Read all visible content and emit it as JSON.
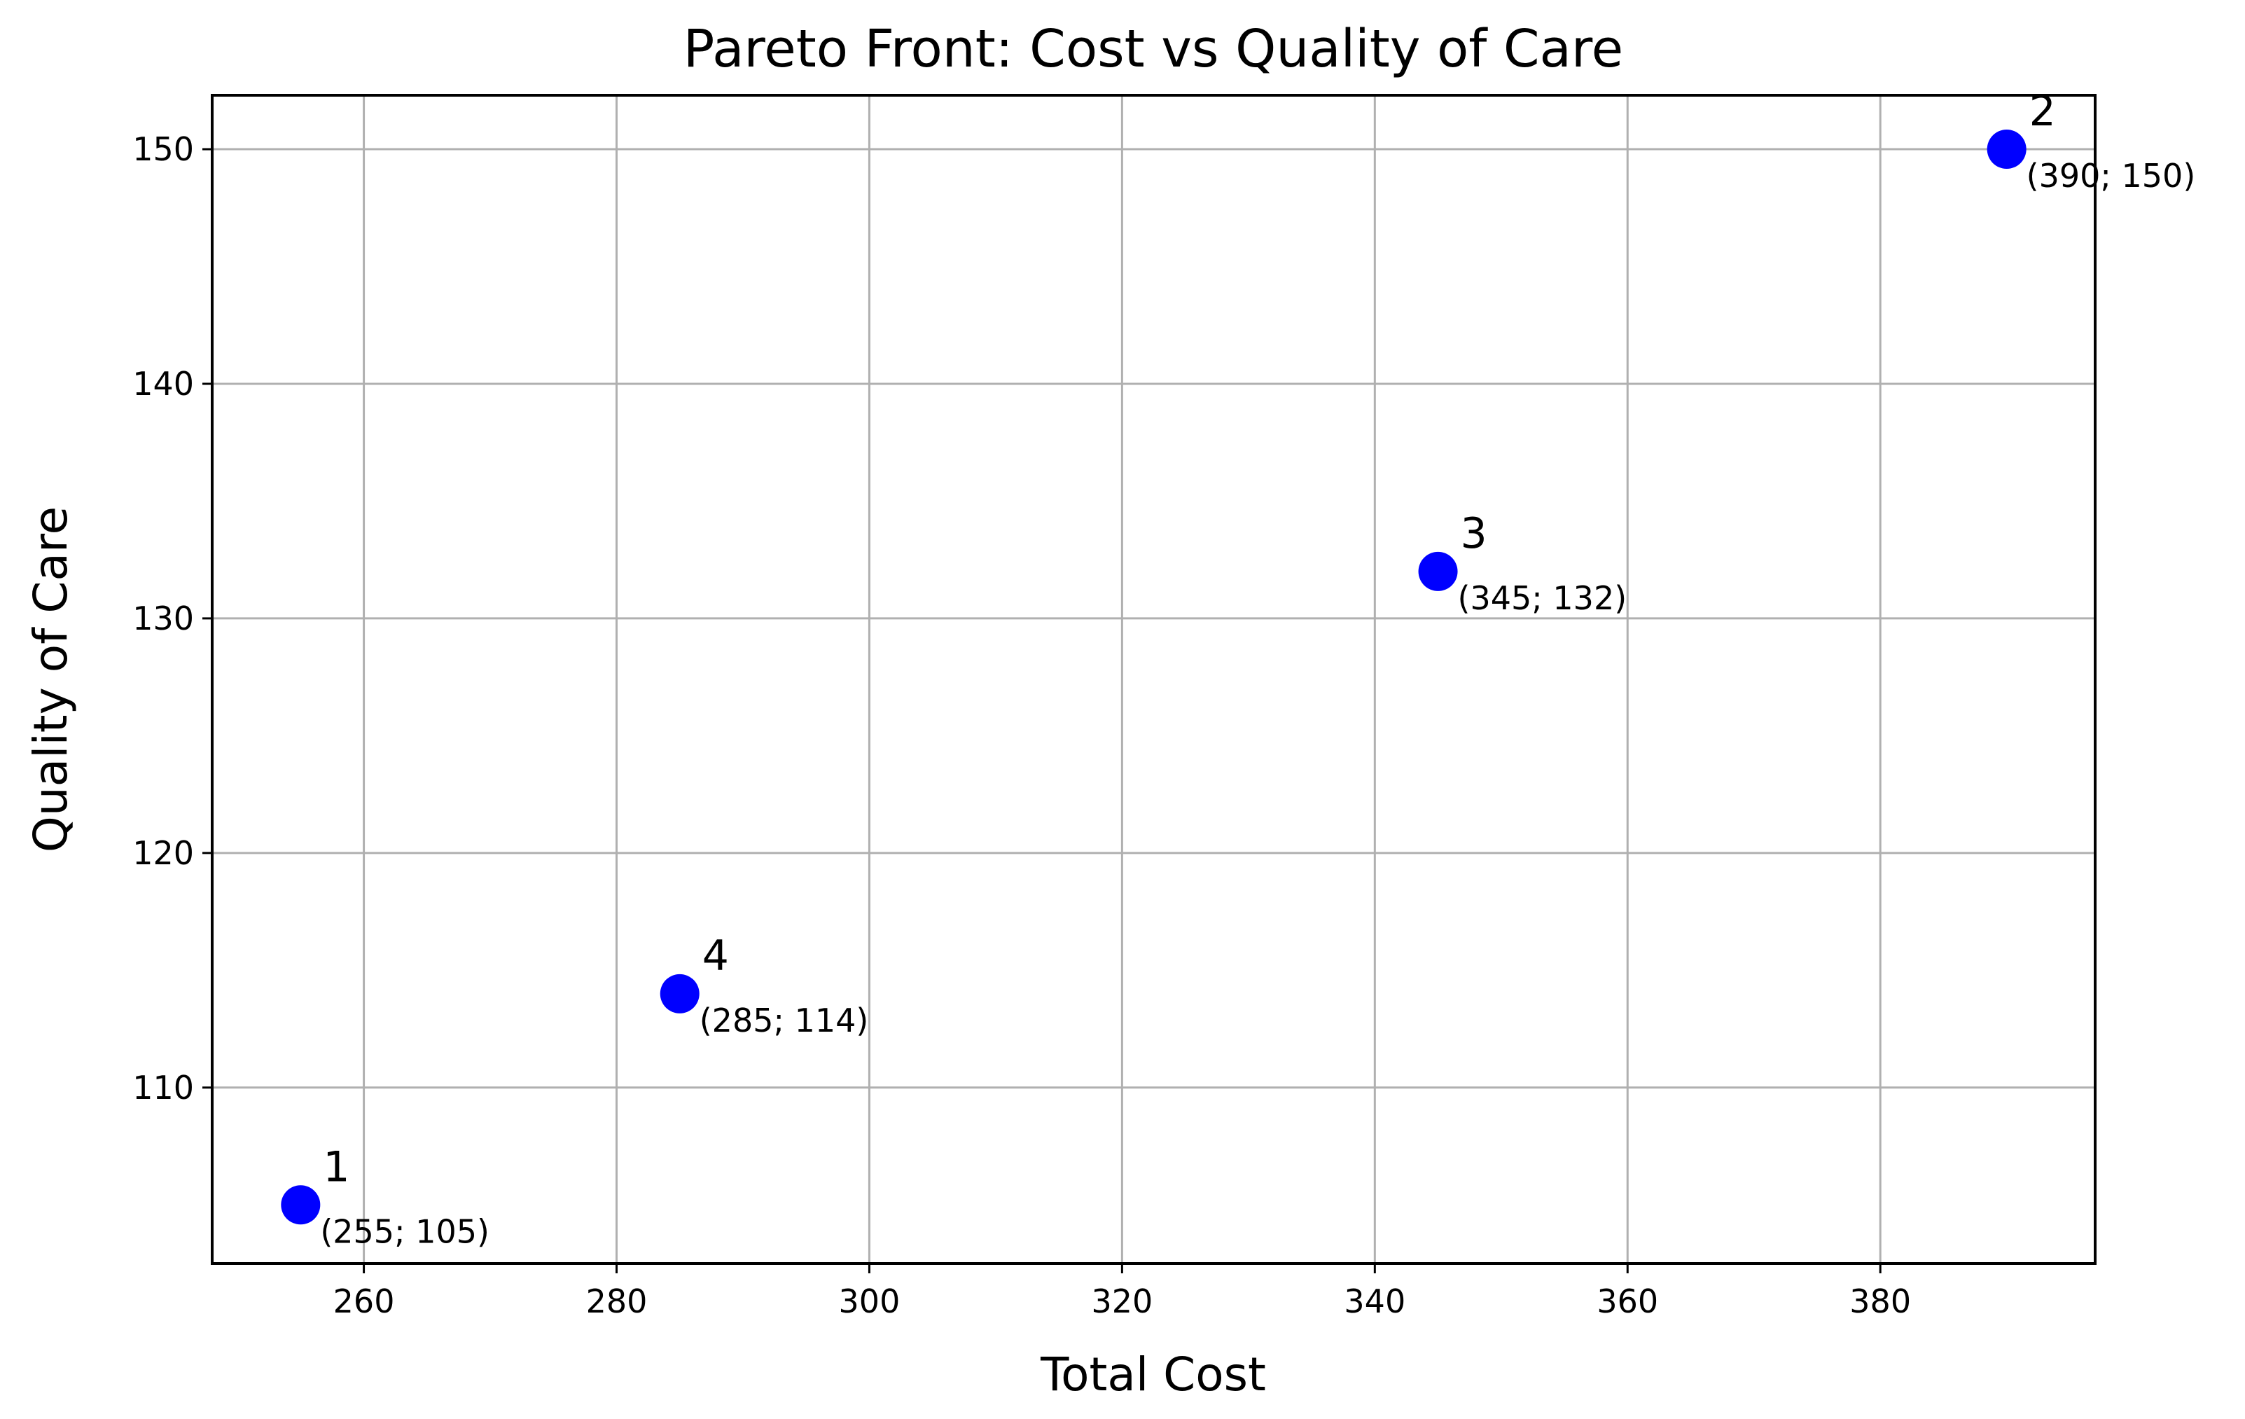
{
  "chart_data": {
    "type": "scatter",
    "title": "Pareto Front: Cost vs Quality of Care",
    "xlabel": "Total Cost",
    "ylabel": "Quality of Care",
    "xlim": [
      248,
      397
    ],
    "ylim": [
      102.5,
      152.3
    ],
    "xticks": [
      260,
      280,
      300,
      320,
      340,
      360,
      380
    ],
    "yticks": [
      110,
      120,
      130,
      140,
      150
    ],
    "grid": true,
    "marker_color": "#0000ff",
    "points": [
      {
        "id": "1",
        "x": 255,
        "y": 105,
        "label": "(255; 105)"
      },
      {
        "id": "2",
        "x": 390,
        "y": 150,
        "label": "(390; 150)"
      },
      {
        "id": "3",
        "x": 345,
        "y": 132,
        "label": "(345; 132)"
      },
      {
        "id": "4",
        "x": 285,
        "y": 114,
        "label": "(285; 114)"
      }
    ]
  }
}
